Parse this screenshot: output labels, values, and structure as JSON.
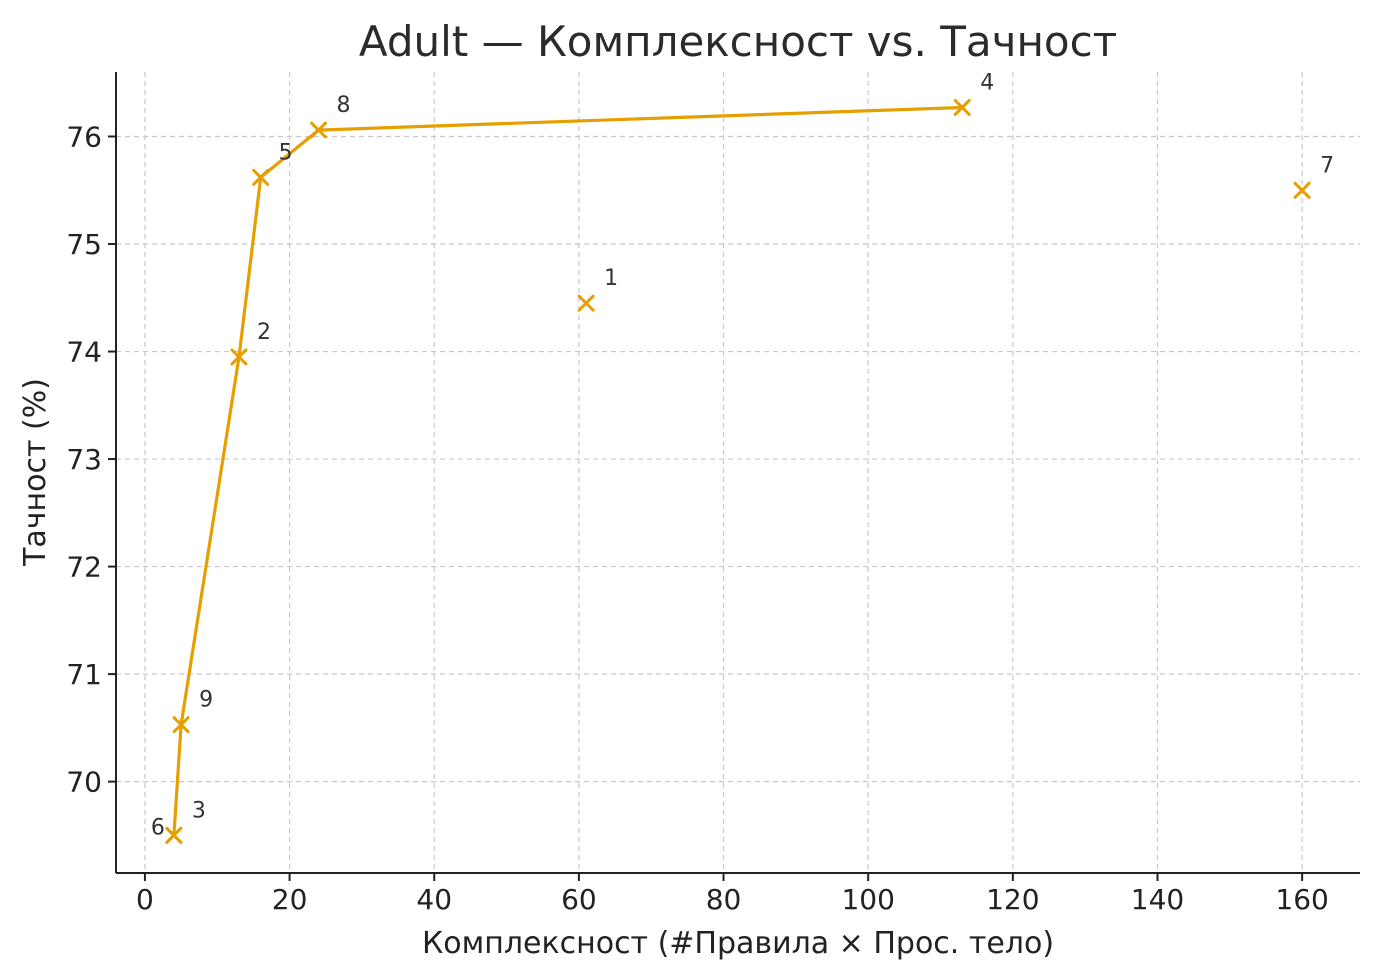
{
  "chart_data": {
    "type": "scatter",
    "title": "Adult — Комплексност vs. Тачност",
    "xlabel": "Комплексност (#Правила × Прос. тело)",
    "ylabel": "Тачност (%)",
    "xlim": [
      -4,
      168
    ],
    "ylim": [
      69.15,
      76.6
    ],
    "x_ticks": [
      0,
      20,
      40,
      60,
      80,
      100,
      120,
      140,
      160
    ],
    "y_ticks": [
      70,
      71,
      72,
      73,
      74,
      75,
      76
    ],
    "grid": true,
    "series_color": "#E69F00",
    "marker": "x",
    "points": [
      {
        "label": "1",
        "x": 61,
        "y": 74.45
      },
      {
        "label": "2",
        "x": 13,
        "y": 73.95
      },
      {
        "label": "3",
        "x": 4,
        "y": 69.5
      },
      {
        "label": "4",
        "x": 113,
        "y": 76.27
      },
      {
        "label": "5",
        "x": 16,
        "y": 75.62
      },
      {
        "label": "6",
        "x": 4,
        "y": 69.5
      },
      {
        "label": "7",
        "x": 160,
        "y": 75.5
      },
      {
        "label": "8",
        "x": 24,
        "y": 76.06
      },
      {
        "label": "9",
        "x": 5,
        "y": 70.53
      }
    ],
    "frontier": [
      {
        "x": 4,
        "y": 69.5
      },
      {
        "x": 5,
        "y": 70.53
      },
      {
        "x": 13,
        "y": 73.95
      },
      {
        "x": 16,
        "y": 75.62
      },
      {
        "x": 24,
        "y": 76.06
      },
      {
        "x": 113,
        "y": 76.27
      }
    ]
  }
}
